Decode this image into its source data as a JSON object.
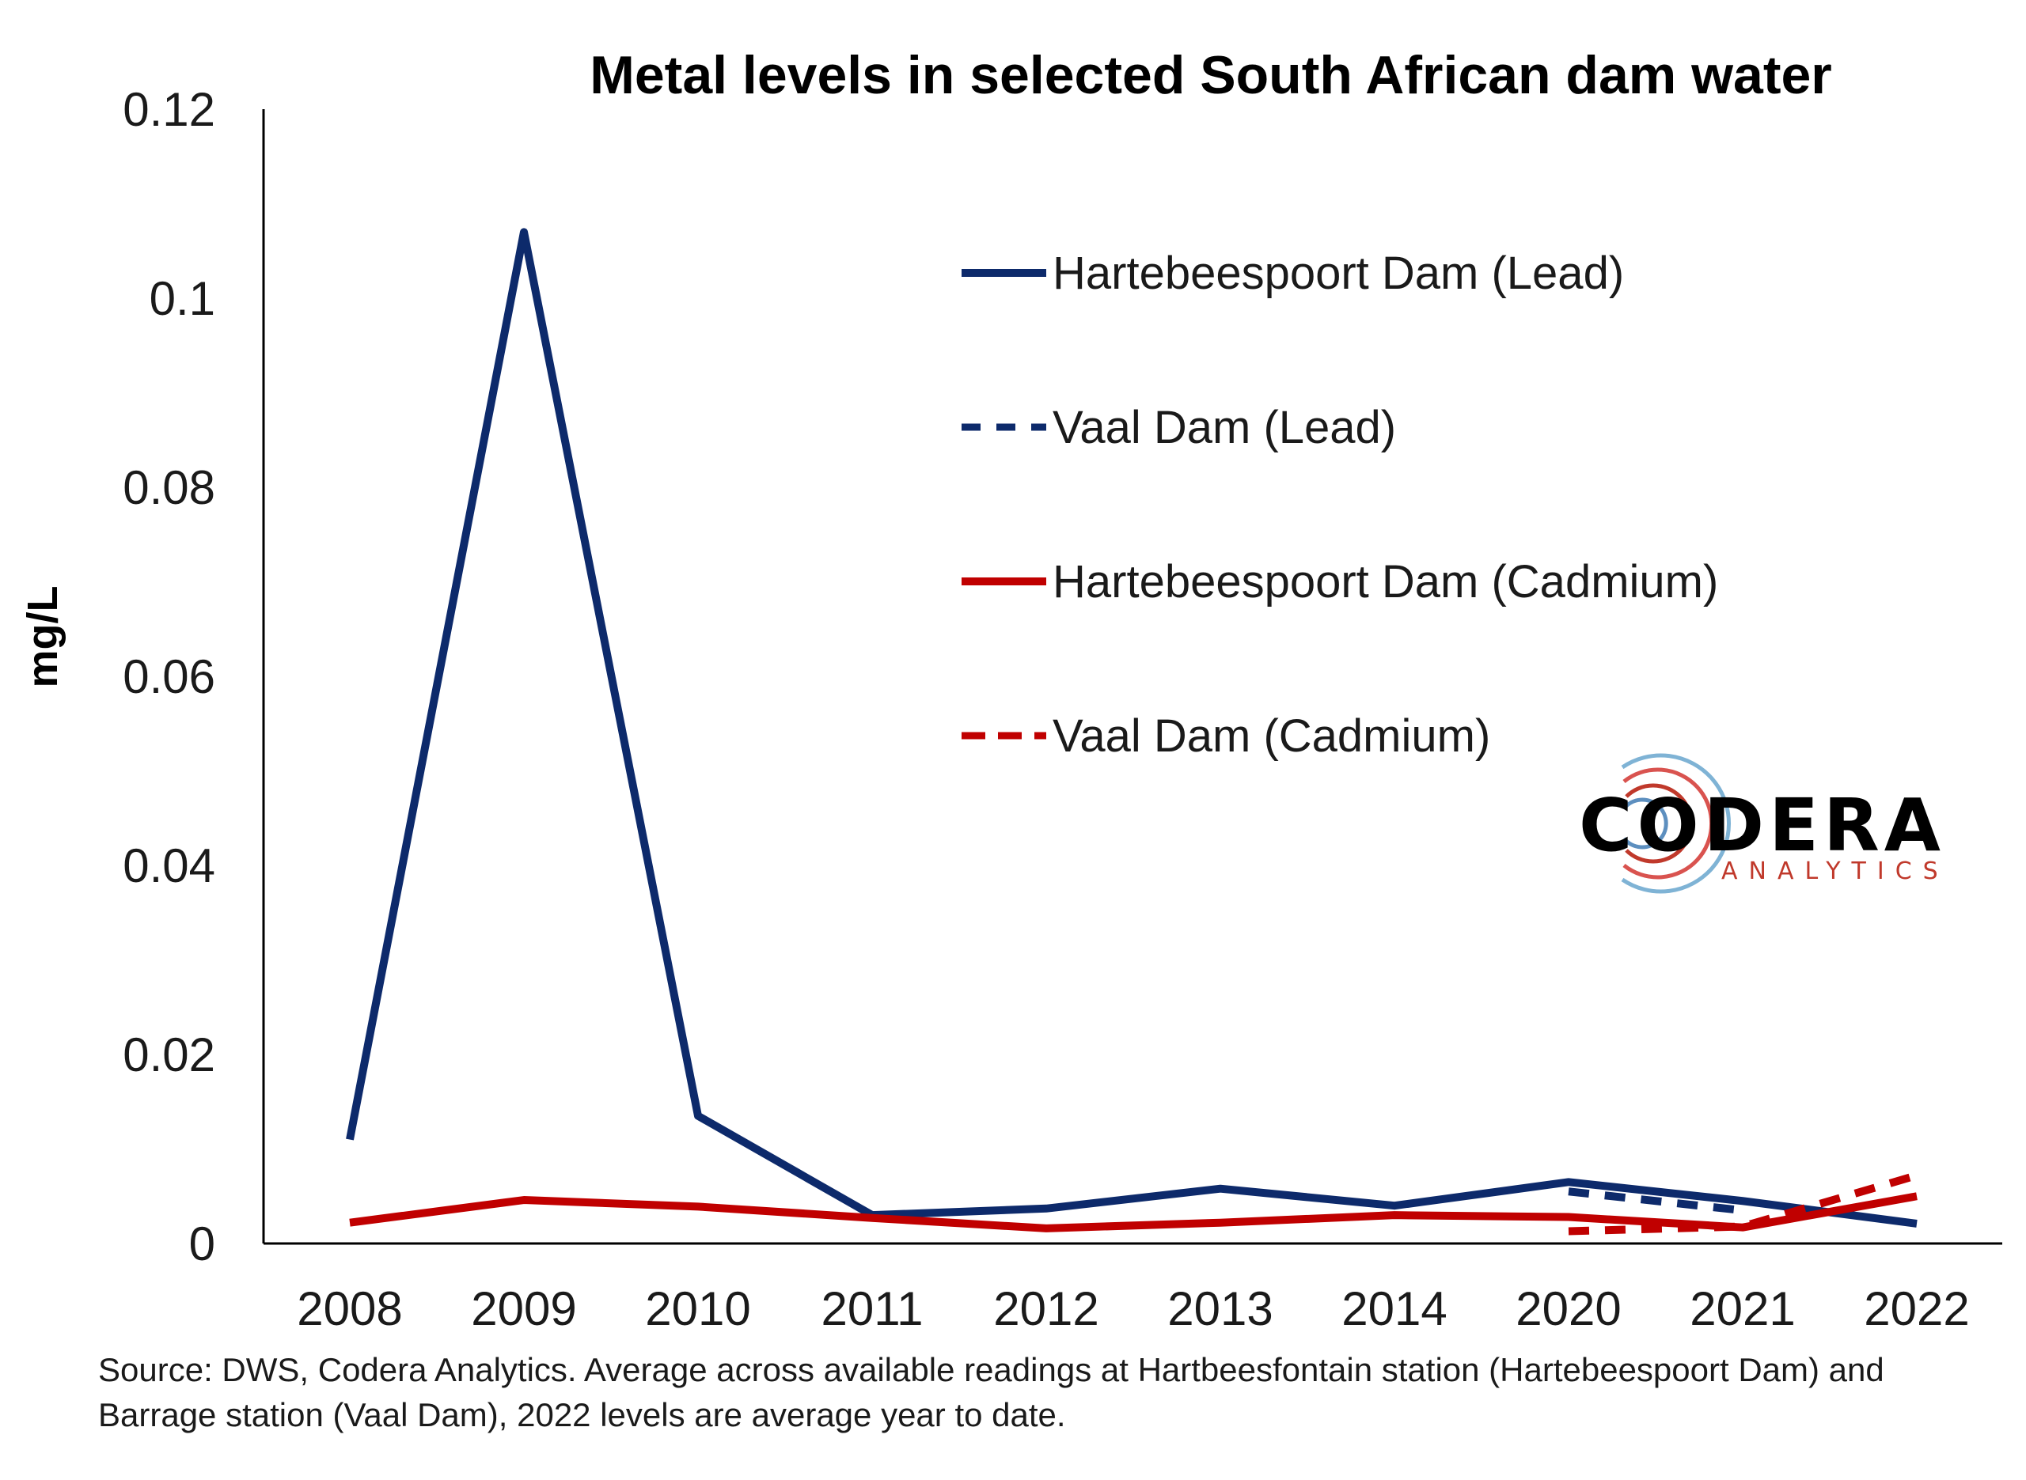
{
  "chart_data": {
    "type": "line",
    "title": "Metal levels in selected South African dam water",
    "xlabel": "",
    "ylabel": "mg/L",
    "categories": [
      "2008",
      "2009",
      "2010",
      "2011",
      "2012",
      "2013",
      "2014",
      "2020",
      "2021",
      "2022"
    ],
    "ylim": [
      0,
      0.12
    ],
    "yticks": [
      "0",
      "0.02",
      "0.04",
      "0.06",
      "0.08",
      "0.1",
      "0.12"
    ],
    "grid": false,
    "legend_position": "top-right",
    "series": [
      {
        "name": "Hartebeespoort Dam (Lead)",
        "color": "#0d2a6b",
        "dash": false,
        "values": [
          0.011,
          0.107,
          0.0135,
          0.003,
          0.0037,
          0.0058,
          0.004,
          0.0065,
          0.0045,
          0.0021
        ]
      },
      {
        "name": "Vaal Dam (Lead)",
        "color": "#0d2a6b",
        "dash": true,
        "values": [
          null,
          null,
          null,
          null,
          null,
          null,
          null,
          0.0055,
          0.0035,
          null
        ]
      },
      {
        "name": "Hartebeespoort Dam (Cadmium)",
        "color": "#c00000",
        "dash": false,
        "values": [
          0.0022,
          0.0046,
          0.0039,
          0.0027,
          0.0016,
          0.0022,
          0.003,
          0.0028,
          0.0017,
          0.005
        ]
      },
      {
        "name": "Vaal Dam (Cadmium)",
        "color": "#c00000",
        "dash": true,
        "values": [
          null,
          null,
          null,
          null,
          null,
          null,
          null,
          0.0013,
          0.0018,
          0.0072
        ]
      }
    ]
  },
  "source_text": "Source: DWS, Codera Analytics. Average across available readings at Hartbeesfontain station (Hartebeespoort Dam) and Barrage station (Vaal Dam), 2022 levels are average year to date.",
  "logo": {
    "main": "CODERA",
    "sub": "ANALYTICS"
  }
}
